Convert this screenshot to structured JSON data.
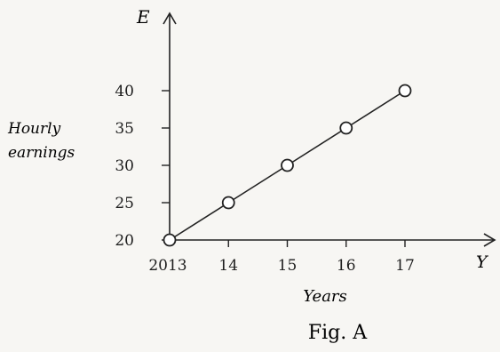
{
  "chart_data": {
    "type": "line",
    "title": "Fig. A",
    "y_axis_symbol": "E",
    "x_axis_symbol": "Y",
    "ylabel_line1": "Hourly",
    "ylabel_line2": "earnings",
    "xlabel": "Years",
    "x": [
      "2013",
      "14",
      "15",
      "16",
      "17"
    ],
    "y_ticks": [
      20,
      25,
      30,
      35,
      40
    ],
    "ylim": [
      20,
      40
    ],
    "series": [
      {
        "values": [
          20,
          25,
          30,
          35,
          40
        ]
      }
    ],
    "marker": "hollow-circle",
    "grid": false
  }
}
